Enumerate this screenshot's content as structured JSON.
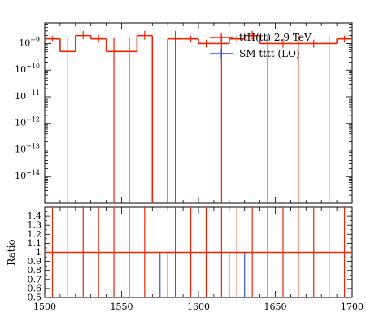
{
  "chart_data": [
    {
      "type": "step-histogram",
      "panel": "main",
      "xlabel": "",
      "ylabel": "",
      "ylog": true,
      "ylim": [
        1e-15,
        6e-09
      ],
      "xlim": [
        1500,
        1700
      ],
      "y_ticks": [
        {
          "value": 1e-09,
          "label": "10",
          "exp": "−9"
        },
        {
          "value": 1e-10,
          "label": "10",
          "exp": "−10"
        },
        {
          "value": 1e-11,
          "label": "10",
          "exp": "−11"
        },
        {
          "value": 1e-12,
          "label": "10",
          "exp": "−12"
        },
        {
          "value": 1e-13,
          "label": "10",
          "exp": "−13"
        },
        {
          "value": 1e-14,
          "label": "10",
          "exp": "−14"
        }
      ],
      "series": [
        {
          "name": "ttH(tt) 2.9 TeV",
          "color": "#ee2200",
          "bins": [
            {
              "x0": 1500,
              "x1": 1510,
              "y": 1.5e-09,
              "err": [
                1.2e-09,
                1.9e-09
              ]
            },
            {
              "x0": 1510,
              "x1": 1520,
              "y": 5e-10,
              "err": [
                1e-15,
                1.6e-09
              ]
            },
            {
              "x0": 1520,
              "x1": 1530,
              "y": 2e-09,
              "err": [
                1.5e-09,
                3e-09
              ]
            },
            {
              "x0": 1530,
              "x1": 1540,
              "y": 1.5e-09,
              "err": [
                1.1e-09,
                2.1e-09
              ]
            },
            {
              "x0": 1540,
              "x1": 1550,
              "y": 5e-10,
              "err": [
                1e-15,
                1.6e-09
              ]
            },
            {
              "x0": 1550,
              "x1": 1560,
              "y": 5e-10,
              "err": [
                1e-15,
                1.6e-09
              ]
            },
            {
              "x0": 1560,
              "x1": 1570,
              "y": 2e-09,
              "err": [
                1.4e-09,
                3e-09
              ]
            },
            {
              "x0": 1570,
              "x1": 1580,
              "y": 1e-15,
              "err": null
            },
            {
              "x0": 1580,
              "x1": 1590,
              "y": 1.5e-09,
              "err": [
                1e-15,
                3e-09
              ]
            },
            {
              "x0": 1590,
              "x1": 1600,
              "y": 1.5e-09,
              "err": [
                1.1e-09,
                2e-09
              ]
            },
            {
              "x0": 1600,
              "x1": 1610,
              "y": 1e-09,
              "err": [
                7e-10,
                1.4e-09
              ]
            },
            {
              "x0": 1610,
              "x1": 1620,
              "y": 1e-09,
              "err": [
                1e-15,
                2e-09
              ]
            },
            {
              "x0": 1620,
              "x1": 1630,
              "y": 1.5e-09,
              "err": [
                1.1e-09,
                2e-09
              ]
            },
            {
              "x0": 1630,
              "x1": 1640,
              "y": 2e-09,
              "err": [
                1.4e-09,
                3e-09
              ]
            },
            {
              "x0": 1640,
              "x1": 1650,
              "y": 1e-09,
              "err": [
                1e-15,
                2e-09
              ]
            },
            {
              "x0": 1650,
              "x1": 1660,
              "y": 1e-09,
              "err": [
                7e-10,
                1.5e-09
              ]
            },
            {
              "x0": 1660,
              "x1": 1670,
              "y": 1e-09,
              "err": [
                1e-15,
                2e-09
              ]
            },
            {
              "x0": 1670,
              "x1": 1680,
              "y": 1e-09,
              "err": [
                7e-10,
                1.4e-09
              ]
            },
            {
              "x0": 1680,
              "x1": 1690,
              "y": 1e-09,
              "err": [
                1e-15,
                2e-09
              ]
            },
            {
              "x0": 1690,
              "x1": 1700,
              "y": 1.5e-09,
              "err": [
                1.1e-09,
                2e-09
              ]
            }
          ]
        },
        {
          "name": "SM tttt (LO)",
          "color": "#3355dd",
          "bins": []
        }
      ],
      "legend_position": "top-right"
    },
    {
      "type": "step-histogram",
      "panel": "ratio",
      "xlabel": "",
      "ylabel": "Ratio",
      "ylim": [
        0.5,
        1.5
      ],
      "xlim": [
        1500,
        1700
      ],
      "y_ticks": [
        {
          "value": 0.5,
          "label": "0.5"
        },
        {
          "value": 0.6,
          "label": "0.6"
        },
        {
          "value": 0.7,
          "label": "0.7"
        },
        {
          "value": 0.8,
          "label": "0.8"
        },
        {
          "value": 0.9,
          "label": "0.9"
        },
        {
          "value": 1.0,
          "label": "1"
        },
        {
          "value": 1.1,
          "label": "1.1"
        },
        {
          "value": 1.2,
          "label": "1.2"
        },
        {
          "value": 1.3,
          "label": "1.3"
        },
        {
          "value": 1.4,
          "label": "1.4"
        }
      ],
      "x_ticks": [
        {
          "value": 1500,
          "label": "1500"
        },
        {
          "value": 1550,
          "label": "1550"
        },
        {
          "value": 1600,
          "label": "1600"
        },
        {
          "value": 1650,
          "label": "1650"
        },
        {
          "value": 1700,
          "label": "1700"
        }
      ],
      "ratio_value": 1.0,
      "red_error_x": [
        1505,
        1515,
        1525,
        1535,
        1545,
        1555,
        1565,
        1585,
        1595,
        1605,
        1615,
        1625,
        1635,
        1645,
        1655,
        1665,
        1675,
        1685,
        1695
      ],
      "blue_error_x": [
        1575,
        1580,
        1620,
        1630
      ]
    }
  ]
}
